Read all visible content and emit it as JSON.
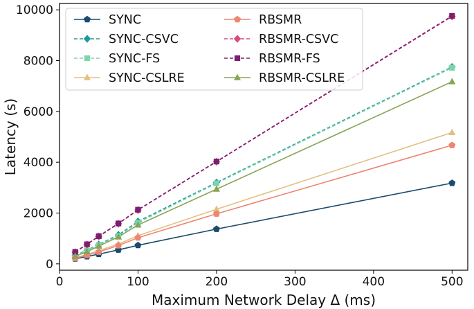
{
  "chart_data": {
    "type": "line",
    "title": "",
    "xlabel": "Maximum Network Delay Δ (ms)",
    "ylabel": "Latency (s)",
    "xlim": [
      0,
      520
    ],
    "ylim": [
      -250,
      10250
    ],
    "xticks": [
      0,
      100,
      200,
      300,
      400,
      500
    ],
    "yticks": [
      0,
      2000,
      4000,
      6000,
      8000,
      10000
    ],
    "grid": false,
    "legend_position": "top-left",
    "legend_columns": 2,
    "x": [
      20,
      35,
      50,
      75,
      100,
      200,
      500
    ],
    "series": [
      {
        "name": "SYNC",
        "color": "#1a4a6e",
        "marker": "pentagon",
        "dashed": false,
        "values": [
          200,
          290,
          380,
          550,
          730,
          1370,
          3180
        ]
      },
      {
        "name": "SYNC-CSVC",
        "color": "#1f9a9b",
        "marker": "diamond",
        "dashed": true,
        "values": [
          330,
          540,
          760,
          1140,
          1670,
          3200,
          7750
        ]
      },
      {
        "name": "SYNC-FS",
        "color": "#7ed4ac",
        "marker": "square",
        "dashed": true,
        "values": [
          320,
          520,
          740,
          1100,
          1620,
          3170,
          7720
        ]
      },
      {
        "name": "SYNC-CSLRE",
        "color": "#e3c080",
        "marker": "triangle",
        "dashed": false,
        "values": [
          240,
          370,
          520,
          780,
          1110,
          2150,
          5170
        ]
      },
      {
        "name": "RBSMR",
        "color": "#ec8672",
        "marker": "pentagon",
        "dashed": false,
        "values": [
          220,
          340,
          470,
          720,
          1030,
          1970,
          4670
        ]
      },
      {
        "name": "RBSMR-CSVC",
        "color": "#dc4b7e",
        "marker": "diamond",
        "dashed": true,
        "values": [
          460,
          760,
          1080,
          1580,
          2120,
          4020,
          9740
        ]
      },
      {
        "name": "RBSMR-FS",
        "color": "#7b1f72",
        "marker": "square",
        "dashed": true,
        "values": [
          470,
          770,
          1090,
          1590,
          2130,
          4030,
          9760
        ]
      },
      {
        "name": "RBSMR-CSLRE",
        "color": "#87a555",
        "marker": "triangle",
        "dashed": false,
        "values": [
          300,
          480,
          700,
          1060,
          1530,
          2940,
          7170
        ]
      }
    ]
  }
}
